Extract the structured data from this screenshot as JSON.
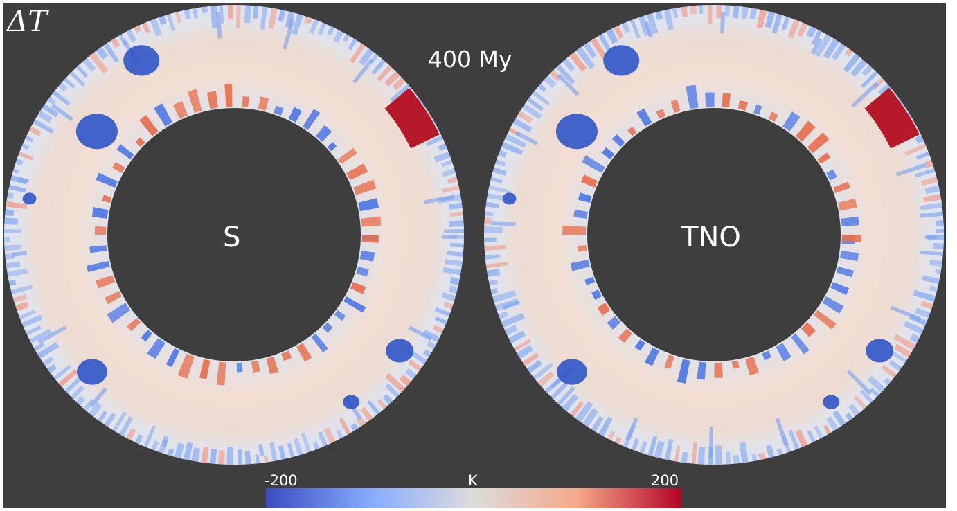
{
  "figure": {
    "quantity_symbol": "ΔT",
    "time_label": "400 My",
    "panels": [
      {
        "label": "S"
      },
      {
        "label": "TNO"
      }
    ],
    "colorbar": {
      "min_label": "-200",
      "unit_label": "K",
      "max_label": "200",
      "colormap": [
        "#3b4cc0",
        "#86abfe",
        "#dddcdc",
        "#f5a889",
        "#b40426"
      ]
    },
    "colors": {
      "background": "#3e3e3e",
      "shell_base": "#e6e3e2",
      "warm_tint": "#f2ddd2",
      "cold_anomaly": "#2f55c8",
      "hot_anomaly": "#b5192a"
    }
  }
}
